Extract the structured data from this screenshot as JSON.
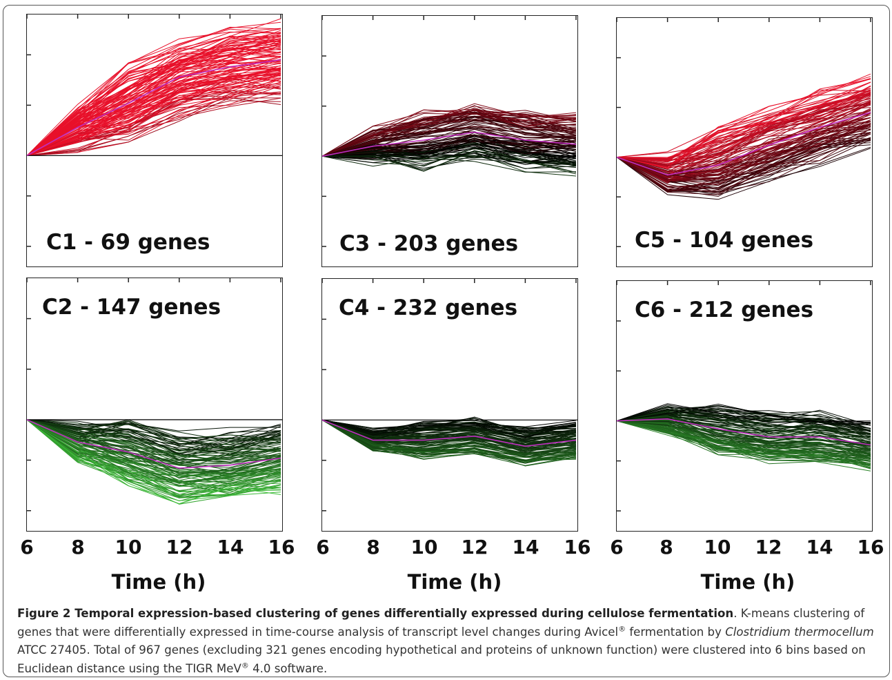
{
  "chart_data": [
    {
      "type": "line",
      "label": "C1 - 69 genes",
      "x": [
        6,
        8,
        10,
        12,
        14,
        16
      ],
      "mean": [
        0,
        0.28,
        0.52,
        0.78,
        0.88,
        0.95
      ],
      "spread": 0.35,
      "seed": 11,
      "colorScheme": "red",
      "refline": true,
      "ylim": [
        -1.1,
        1.4
      ]
    },
    {
      "type": "line",
      "label": "C2 - 147 genes",
      "x": [
        6,
        8,
        10,
        12,
        14,
        16
      ],
      "mean": [
        0,
        -0.22,
        -0.32,
        -0.48,
        -0.45,
        -0.38
      ],
      "spread": 0.3,
      "seed": 23,
      "colorScheme": "green",
      "refline": true,
      "ylim": [
        -1.1,
        1.4
      ]
    },
    {
      "type": "line",
      "label": "C3 - 203 genes",
      "x": [
        6,
        8,
        10,
        12,
        14,
        16
      ],
      "mean": [
        0,
        0.1,
        0.16,
        0.24,
        0.16,
        0.12
      ],
      "spread": 0.28,
      "seed": 37,
      "colorScheme": "mixed-red",
      "refline": false,
      "ylim": [
        -1.1,
        1.4
      ]
    },
    {
      "type": "line",
      "label": "C4 - 232 genes",
      "x": [
        6,
        8,
        10,
        12,
        14,
        16
      ],
      "mean": [
        0,
        -0.2,
        -0.2,
        -0.16,
        -0.26,
        -0.2
      ],
      "spread": 0.16,
      "seed": 41,
      "colorScheme": "mixed-green",
      "refline": true,
      "ylim": [
        -1.1,
        1.4
      ]
    },
    {
      "type": "line",
      "label": "C5 - 104 genes",
      "x": [
        6,
        8,
        10,
        12,
        14,
        16
      ],
      "mean": [
        0,
        -0.18,
        -0.08,
        0.12,
        0.3,
        0.45
      ],
      "spread": 0.32,
      "seed": 53,
      "colorScheme": "mixed",
      "refline": false,
      "ylim": [
        -1.1,
        1.4
      ]
    },
    {
      "type": "line",
      "label": "C6 - 212 genes",
      "x": [
        6,
        8,
        10,
        12,
        14,
        16
      ],
      "mean": [
        0,
        0.02,
        -0.08,
        -0.16,
        -0.16,
        -0.24
      ],
      "spread": 0.22,
      "seed": 67,
      "colorScheme": "mixed",
      "refline": false,
      "ylim": [
        -1.1,
        1.4
      ]
    }
  ],
  "x_ticks": [
    "6",
    "8",
    "10",
    "12",
    "14",
    "16"
  ],
  "xlabel": "Time (h)",
  "caption": {
    "title": "Figure 2 Temporal expression-based clustering of genes differentially expressed during cellulose fermentation",
    "text1": ". K-means clustering of genes that were differentially expressed in time-course analysis of transcript level changes during Avicel",
    "reg1": "®",
    "text2": " fermentation by ",
    "species": "Clostridium thermocellum",
    "text3": " ATCC 27405. Total of 967 genes (excluding 321 genes encoding hypothetical and proteins of unknown function) were clustered into 6 bins based on Euclidean distance using the TIGR MeV",
    "reg2": "®",
    "text4": " 4.0 software."
  },
  "colors": {
    "red": "#e8102a",
    "green": "#3fc23a",
    "dark": "#000000",
    "mean_line": "#c02ec0"
  }
}
